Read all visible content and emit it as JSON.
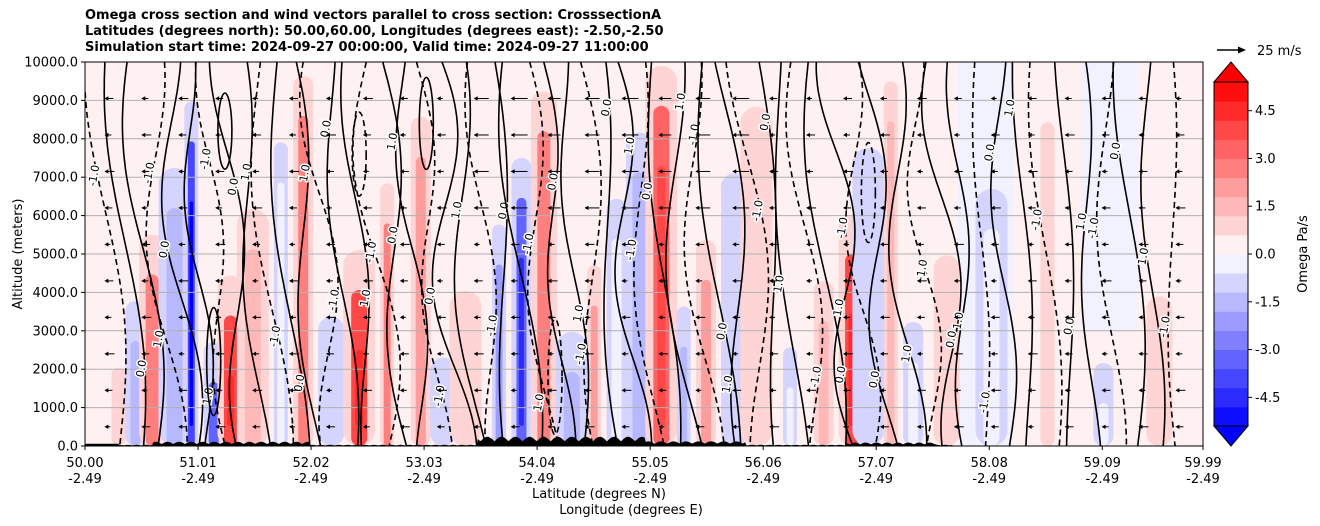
{
  "titles": {
    "line1": "Omega cross section and wind vectors parallel to cross section: CrosssectionA",
    "line2": "Latitudes (degrees north): 50.00,60.00, Longitudes (degrees east): -2.50,-2.50",
    "line3": "Simulation start time: 2024-09-27 00:00:00, Valid time: 2024-09-27 11:00:00"
  },
  "vector_key": {
    "label": "25 m/s",
    "arrow_color": "#000000"
  },
  "chart_data": {
    "type": "heatmap",
    "ylabel": "Altitude (meters)",
    "xlabel_lines": [
      "Latitude (degrees N)",
      "Longitude (degrees E)"
    ],
    "ylim": [
      0,
      10000
    ],
    "xlim": [
      50.0,
      59.99
    ],
    "yticks": [
      "0.0",
      "1000.0",
      "2000.0",
      "3000.0",
      "4000.0",
      "5000.0",
      "6000.0",
      "7000.0",
      "8000.0",
      "9000.0",
      "10000.0"
    ],
    "ytick_values": [
      0,
      1000,
      2000,
      3000,
      4000,
      5000,
      6000,
      7000,
      8000,
      9000,
      10000
    ],
    "xticks": [
      {
        "lat": "50.00",
        "lon": "-2.49",
        "value": 50.0
      },
      {
        "lat": "51.01",
        "lon": "-2.49",
        "value": 51.01
      },
      {
        "lat": "52.02",
        "lon": "-2.49",
        "value": 52.02
      },
      {
        "lat": "53.03",
        "lon": "-2.49",
        "value": 53.03
      },
      {
        "lat": "54.04",
        "lon": "-2.49",
        "value": 54.04
      },
      {
        "lat": "55.05",
        "lon": "-2.49",
        "value": 55.05
      },
      {
        "lat": "56.06",
        "lon": "-2.49",
        "value": 56.06
      },
      {
        "lat": "57.07",
        "lon": "-2.49",
        "value": 57.07
      },
      {
        "lat": "58.08",
        "lon": "-2.49",
        "value": 58.08
      },
      {
        "lat": "59.09",
        "lon": "-2.49",
        "value": 59.09
      },
      {
        "lat": "59.99",
        "lon": "-2.49",
        "value": 59.99
      }
    ],
    "grid": "horizontal",
    "colorbar": {
      "label": "Omega Pa/s",
      "range": [
        -5.4,
        5.4
      ],
      "ticks": [
        "-4.5",
        "-3.0",
        "-1.5",
        "0.0",
        "1.5",
        "3.0",
        "4.5"
      ],
      "tick_values": [
        -4.5,
        -3.0,
        -1.5,
        0.0,
        1.5,
        3.0,
        4.5
      ],
      "levels": [
        -5.4,
        -4.8,
        -4.2,
        -3.6,
        -3.0,
        -2.4,
        -1.8,
        -1.2,
        -0.6,
        0,
        0.6,
        1.2,
        1.8,
        2.4,
        3.0,
        3.6,
        4.2,
        4.8,
        5.4
      ],
      "extend": "both",
      "colormap": "bwr",
      "min_color": "#0000ff",
      "max_color": "#ff0000"
    },
    "contour_levels": [
      -1.0,
      0.0,
      1.0
    ],
    "contour_labels": [
      "0.0",
      "1.0",
      "-1.0"
    ],
    "omega_columns": [
      {
        "x": 50.3,
        "value": 1.0
      },
      {
        "x": 50.45,
        "value": -1.8
      },
      {
        "x": 50.6,
        "value": 2.4
      },
      {
        "x": 50.8,
        "value": -1.8
      },
      {
        "x": 50.95,
        "value": -4.2
      },
      {
        "x": 51.15,
        "value": -3.6
      },
      {
        "x": 51.3,
        "value": 3.6
      },
      {
        "x": 51.5,
        "value": 1.2
      },
      {
        "x": 51.75,
        "value": -0.6
      },
      {
        "x": 51.95,
        "value": 2.4
      },
      {
        "x": 52.2,
        "value": -1.2
      },
      {
        "x": 52.45,
        "value": 3.6
      },
      {
        "x": 52.7,
        "value": 2.4
      },
      {
        "x": 53.0,
        "value": 1.8
      },
      {
        "x": 53.2,
        "value": -1.2
      },
      {
        "x": 53.4,
        "value": 0.6
      },
      {
        "x": 53.7,
        "value": -2.4
      },
      {
        "x": 53.9,
        "value": -3.6
      },
      {
        "x": 54.1,
        "value": 2.4
      },
      {
        "x": 54.35,
        "value": -1.8
      },
      {
        "x": 54.55,
        "value": 1.8
      },
      {
        "x": 54.75,
        "value": -0.6
      },
      {
        "x": 54.95,
        "value": -1.8
      },
      {
        "x": 55.15,
        "value": 3.0
      },
      {
        "x": 55.35,
        "value": -1.8
      },
      {
        "x": 55.55,
        "value": 1.8
      },
      {
        "x": 55.8,
        "value": -1.2
      },
      {
        "x": 56.0,
        "value": 0.6
      },
      {
        "x": 56.3,
        "value": -0.6
      },
      {
        "x": 56.6,
        "value": 1.2
      },
      {
        "x": 56.85,
        "value": 3.6
      },
      {
        "x": 57.0,
        "value": -1.2
      },
      {
        "x": 57.2,
        "value": 1.2
      },
      {
        "x": 57.4,
        "value": -0.6
      },
      {
        "x": 57.7,
        "value": 0.6
      },
      {
        "x": 58.1,
        "value": -0.6
      },
      {
        "x": 58.6,
        "value": 0.6
      },
      {
        "x": 59.1,
        "value": -0.6
      },
      {
        "x": 59.6,
        "value": 0.6
      }
    ]
  }
}
